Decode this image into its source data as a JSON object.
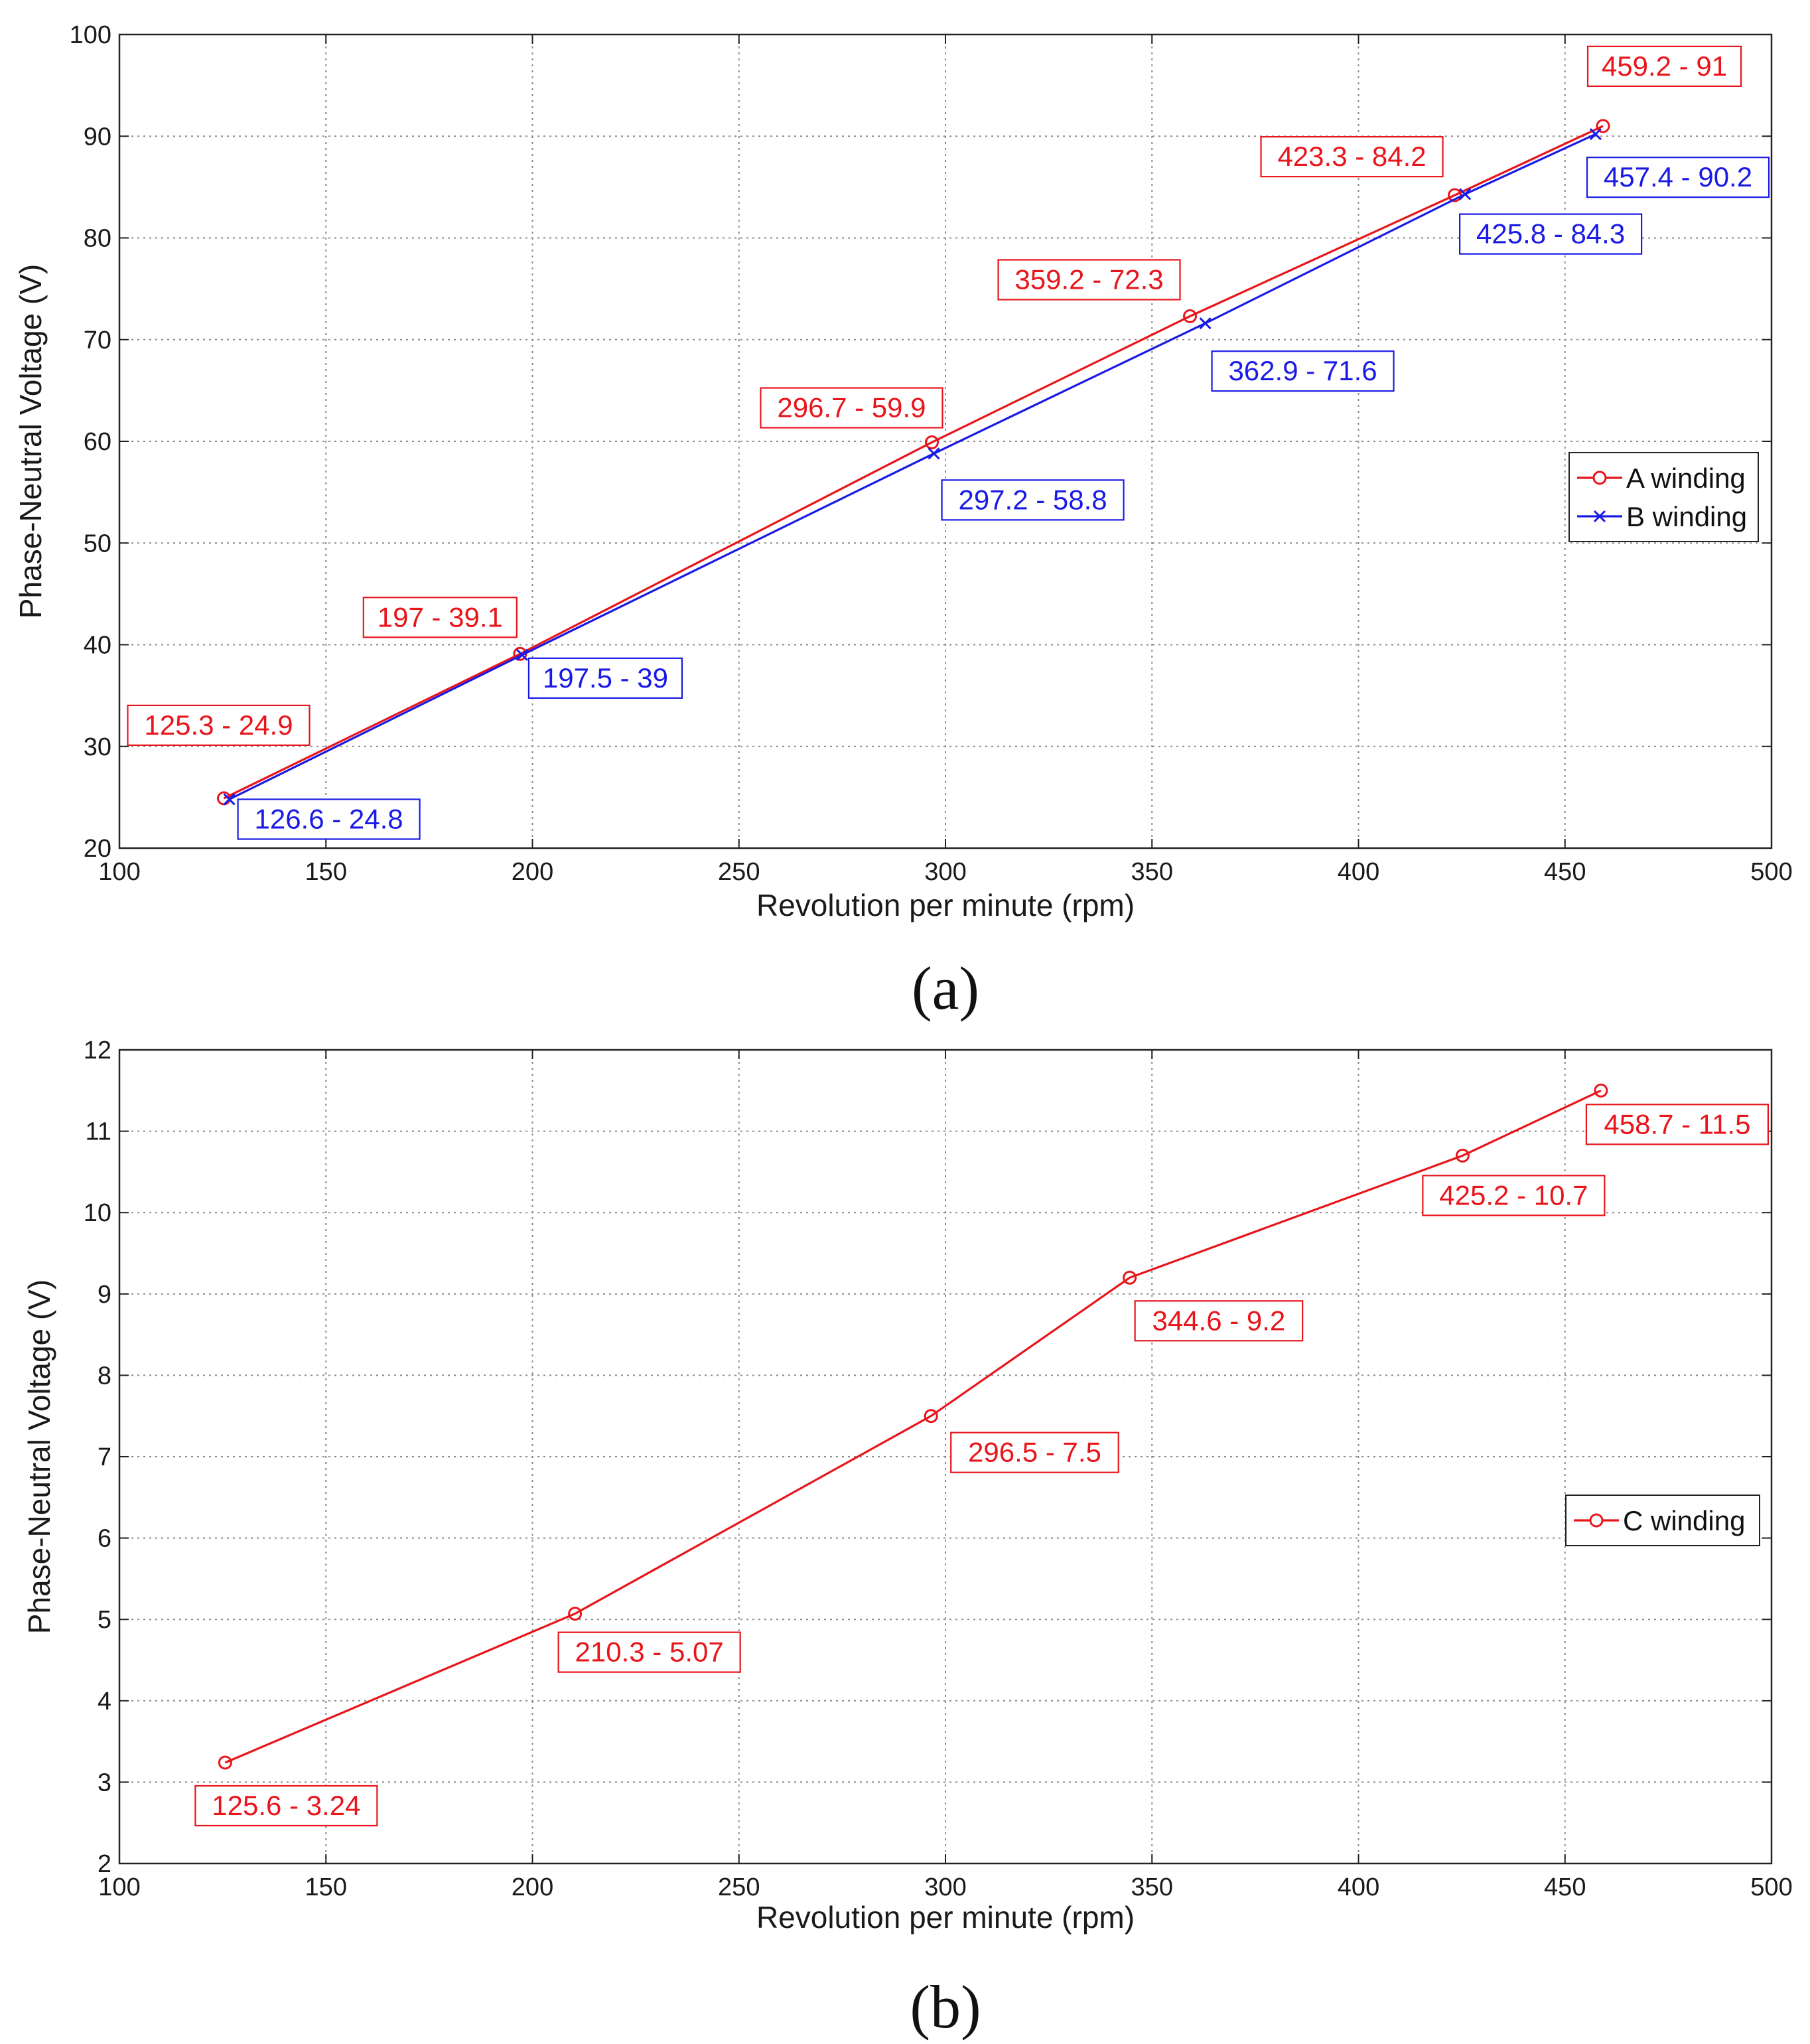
{
  "chart_data": [
    {
      "type": "line",
      "caption": "(a)",
      "xlabel": "Revolution per minute (rpm)",
      "ylabel": "Phase-Neutral Voltage (V)",
      "xlim": [
        100,
        500
      ],
      "ylim": [
        20,
        100
      ],
      "xticks": [
        100,
        150,
        200,
        250,
        300,
        350,
        400,
        450,
        500
      ],
      "yticks": [
        20,
        30,
        40,
        50,
        60,
        70,
        80,
        90,
        100
      ],
      "grid": true,
      "legend_position": "right",
      "series": [
        {
          "name": "A winding",
          "color": "#e8151b",
          "marker": "circle",
          "x": [
            125.3,
            197,
            296.7,
            359.2,
            423.3,
            459.2
          ],
          "y": [
            24.9,
            39.1,
            59.9,
            72.3,
            84.2,
            91
          ],
          "labels": [
            "125.3 - 24.9",
            "197 - 39.1",
            "296.7 - 59.9",
            "359.2 - 72.3",
            "423.3 - 84.2",
            "459.2 - 91"
          ]
        },
        {
          "name": "B winding",
          "color": "#1a1ae6",
          "marker": "x",
          "x": [
            126.6,
            197.5,
            297.2,
            362.9,
            425.8,
            457.4
          ],
          "y": [
            24.8,
            39,
            58.8,
            71.6,
            84.3,
            90.2
          ],
          "labels": [
            "126.6 - 24.8",
            "197.5 - 39",
            "297.2 - 58.8",
            "362.9 - 71.6",
            "425.8 - 84.3",
            "457.4 - 90.2"
          ]
        }
      ]
    },
    {
      "type": "line",
      "caption": "(b)",
      "xlabel": "Revolution per minute (rpm)",
      "ylabel": "Phase-Neutral Voltage (V)",
      "xlim": [
        100,
        500
      ],
      "ylim": [
        2,
        12
      ],
      "xticks": [
        100,
        150,
        200,
        250,
        300,
        350,
        400,
        450,
        500
      ],
      "yticks": [
        2,
        3,
        4,
        5,
        6,
        7,
        8,
        9,
        10,
        11,
        12
      ],
      "grid": true,
      "legend_position": "right",
      "series": [
        {
          "name": "C winding",
          "color": "#e8151b",
          "marker": "circle",
          "x": [
            125.6,
            210.3,
            296.5,
            344.6,
            425.2,
            458.7
          ],
          "y": [
            3.24,
            5.07,
            7.5,
            9.2,
            10.7,
            11.5
          ],
          "labels": [
            "125.6 - 3.24",
            "210.3 - 5.07",
            "296.5 - 7.5",
            "344.6 - 9.2",
            "425.2 - 10.7",
            "458.7 - 11.5"
          ]
        }
      ]
    }
  ]
}
